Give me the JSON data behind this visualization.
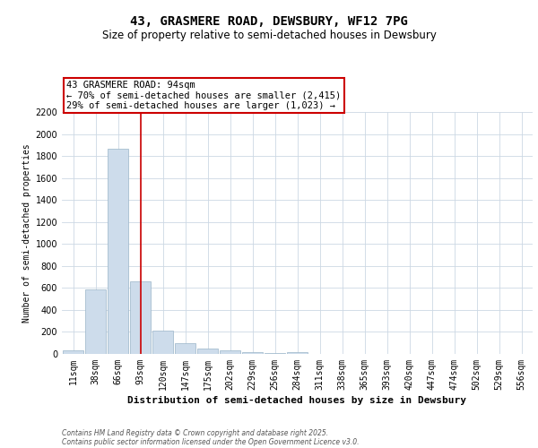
{
  "title1": "43, GRASMERE ROAD, DEWSBURY, WF12 7PG",
  "title2": "Size of property relative to semi-detached houses in Dewsbury",
  "xlabel": "Distribution of semi-detached houses by size in Dewsbury",
  "ylabel": "Number of semi-detached properties",
  "categories": [
    "11sqm",
    "38sqm",
    "66sqm",
    "93sqm",
    "120sqm",
    "147sqm",
    "175sqm",
    "202sqm",
    "229sqm",
    "256sqm",
    "284sqm",
    "311sqm",
    "338sqm",
    "365sqm",
    "393sqm",
    "420sqm",
    "447sqm",
    "474sqm",
    "502sqm",
    "529sqm",
    "556sqm"
  ],
  "values": [
    30,
    590,
    1870,
    660,
    215,
    100,
    45,
    30,
    15,
    5,
    15,
    0,
    0,
    0,
    0,
    0,
    0,
    0,
    0,
    0,
    0
  ],
  "bar_color": "#cddceb",
  "bar_edge_color": "#9ab4c8",
  "highlight_bar_index": 3,
  "highlight_line_color": "#cc0000",
  "annotation_text": "43 GRASMERE ROAD: 94sqm\n← 70% of semi-detached houses are smaller (2,415)\n29% of semi-detached houses are larger (1,023) →",
  "annotation_box_color": "#cc0000",
  "ylim": [
    0,
    2200
  ],
  "yticks": [
    0,
    200,
    400,
    600,
    800,
    1000,
    1200,
    1400,
    1600,
    1800,
    2000,
    2200
  ],
  "footer_line1": "Contains HM Land Registry data © Crown copyright and database right 2025.",
  "footer_line2": "Contains public sector information licensed under the Open Government Licence v3.0.",
  "bg_color": "#ffffff",
  "grid_color": "#ccd8e4",
  "title1_fontsize": 10,
  "title2_fontsize": 8.5,
  "annot_fontsize": 7.5,
  "xlabel_fontsize": 8,
  "ylabel_fontsize": 7,
  "tick_fontsize": 7,
  "footer_fontsize": 5.5
}
